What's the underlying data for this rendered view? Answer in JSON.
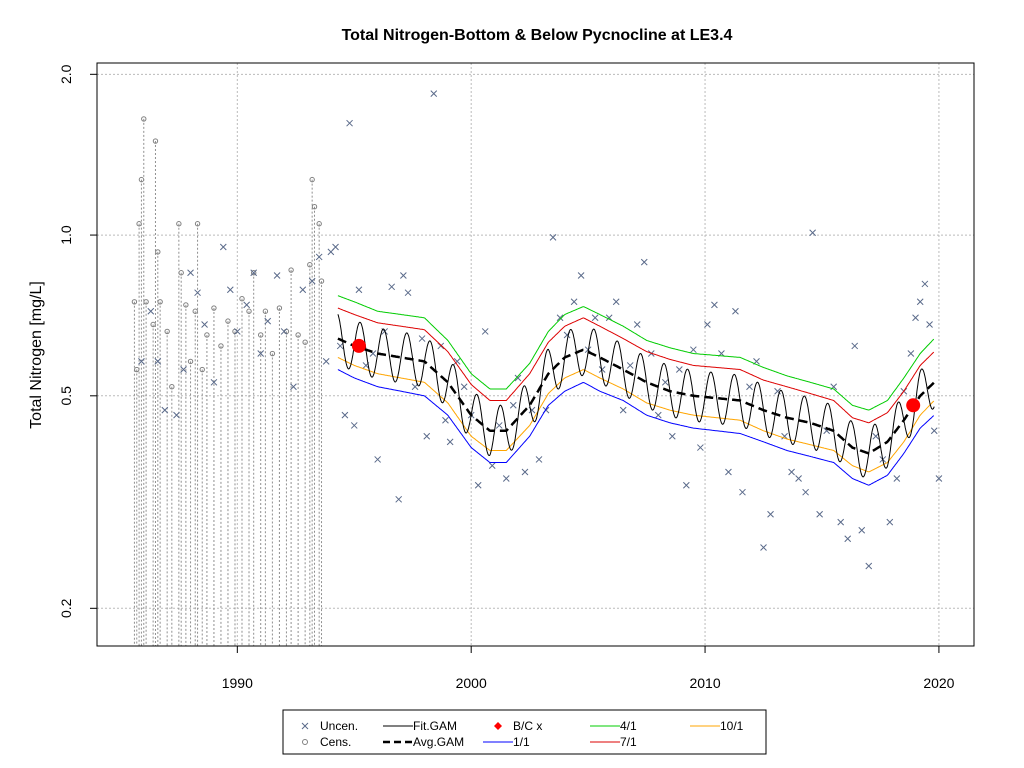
{
  "chart_data": {
    "type": "line",
    "title": "Total Nitrogen-Bottom & Below Pycnocline at LE3.4",
    "xlabel": "",
    "ylabel": "Total Nitrogen [mg/L]",
    "x_range": [
      1984.0,
      2021.5
    ],
    "ylim": [
      0.17,
      2.1
    ],
    "y_scale": "log",
    "x_ticks": [
      1990,
      2000,
      2010,
      2020
    ],
    "y_ticks": [
      0.2,
      0.5,
      1.0,
      2.0
    ],
    "y_tick_labels": [
      "0.2",
      "0.5",
      "1.0",
      "2.0"
    ],
    "grid": true,
    "colors": {
      "points": "#5a6a8a",
      "censored": "#808080",
      "fit_gam": "#000000",
      "avg_gam": "#000000",
      "bc": "#ff0000",
      "ratio_1_1": "#0000ff",
      "ratio_4_1": "#00cc00",
      "ratio_7_1": "#dd0000",
      "ratio_10_1": "#ffa500"
    },
    "series": [
      {
        "name": "Avg.GAM",
        "x": [
          1994.3,
          1995.0,
          1996.0,
          1997.0,
          1998.0,
          1999.0,
          2000.0,
          2000.8,
          2001.5,
          2002.5,
          2003.3,
          2004.0,
          2004.8,
          2005.5,
          2006.5,
          2007.5,
          2008.5,
          2009.5,
          2010.5,
          2011.5,
          2012.5,
          2013.5,
          2014.5,
          2015.5,
          2016.3,
          2017.0,
          2017.8,
          2018.5,
          2019.2,
          2019.8
        ],
        "y": [
          0.64,
          0.62,
          0.6,
          0.59,
          0.58,
          0.53,
          0.46,
          0.43,
          0.43,
          0.48,
          0.55,
          0.59,
          0.61,
          0.59,
          0.56,
          0.53,
          0.51,
          0.5,
          0.495,
          0.49,
          0.47,
          0.455,
          0.445,
          0.43,
          0.4,
          0.39,
          0.41,
          0.45,
          0.5,
          0.53
        ]
      },
      {
        "name": "Fit.GAM",
        "description_free": true,
        "x": [
          1994.3,
          1995.0,
          1996.0,
          1997.0,
          1998.0,
          1999.0,
          2000.0,
          2000.8,
          2001.5,
          2002.5,
          2003.3,
          2004.0,
          2004.8,
          2005.5,
          2006.5,
          2007.5,
          2008.5,
          2009.5,
          2010.5,
          2011.5,
          2012.5,
          2013.5,
          2014.5,
          2015.5,
          2016.3,
          2017.0,
          2017.8,
          2018.5,
          2019.2,
          2019.8
        ],
        "y": [
          0.64,
          0.62,
          0.6,
          0.59,
          0.58,
          0.53,
          0.46,
          0.43,
          0.43,
          0.48,
          0.55,
          0.59,
          0.61,
          0.59,
          0.56,
          0.53,
          0.51,
          0.5,
          0.495,
          0.49,
          0.47,
          0.455,
          0.445,
          0.43,
          0.4,
          0.39,
          0.41,
          0.45,
          0.5,
          0.53
        ],
        "seasonal_amplitude": 0.11
      },
      {
        "name": "1/1",
        "x": [
          1994.3,
          1995.0,
          1996.0,
          1997.0,
          1998.0,
          1999.0,
          2000.0,
          2000.8,
          2001.5,
          2002.5,
          2003.3,
          2004.0,
          2004.8,
          2005.5,
          2006.5,
          2007.5,
          2008.5,
          2009.5,
          2010.5,
          2011.5,
          2012.5,
          2013.5,
          2014.5,
          2015.5,
          2016.3,
          2017.0,
          2017.8,
          2018.5,
          2019.2,
          2019.8
        ],
        "y": [
          0.56,
          0.54,
          0.52,
          0.51,
          0.5,
          0.46,
          0.4,
          0.375,
          0.375,
          0.42,
          0.48,
          0.51,
          0.53,
          0.51,
          0.49,
          0.46,
          0.445,
          0.435,
          0.43,
          0.425,
          0.41,
          0.395,
          0.385,
          0.375,
          0.35,
          0.34,
          0.355,
          0.39,
          0.435,
          0.46
        ]
      },
      {
        "name": "10/1",
        "x": [
          1994.3,
          1995.0,
          1996.0,
          1997.0,
          1998.0,
          1999.0,
          2000.0,
          2000.8,
          2001.5,
          2002.5,
          2003.3,
          2004.0,
          2004.8,
          2005.5,
          2006.5,
          2007.5,
          2008.5,
          2009.5,
          2010.5,
          2011.5,
          2012.5,
          2013.5,
          2014.5,
          2015.5,
          2016.3,
          2017.0,
          2017.8,
          2018.5,
          2019.2,
          2019.8
        ],
        "y": [
          0.59,
          0.57,
          0.55,
          0.54,
          0.53,
          0.485,
          0.42,
          0.395,
          0.395,
          0.44,
          0.505,
          0.54,
          0.56,
          0.54,
          0.515,
          0.485,
          0.47,
          0.46,
          0.455,
          0.45,
          0.43,
          0.415,
          0.405,
          0.395,
          0.37,
          0.36,
          0.375,
          0.41,
          0.46,
          0.49
        ]
      },
      {
        "name": "7/1",
        "x": [
          1994.3,
          1995.0,
          1996.0,
          1997.0,
          1998.0,
          1999.0,
          2000.0,
          2000.8,
          2001.5,
          2002.5,
          2003.3,
          2004.0,
          2004.8,
          2005.5,
          2006.5,
          2007.5,
          2008.5,
          2009.5,
          2010.5,
          2011.5,
          2012.5,
          2013.5,
          2014.5,
          2015.5,
          2016.3,
          2017.0,
          2017.8,
          2018.5,
          2019.2,
          2019.8
        ],
        "y": [
          0.73,
          0.71,
          0.685,
          0.675,
          0.665,
          0.605,
          0.525,
          0.49,
          0.49,
          0.55,
          0.63,
          0.675,
          0.7,
          0.675,
          0.64,
          0.605,
          0.585,
          0.57,
          0.565,
          0.56,
          0.535,
          0.52,
          0.505,
          0.49,
          0.455,
          0.445,
          0.465,
          0.51,
          0.57,
          0.605
        ]
      },
      {
        "name": "4/1",
        "x": [
          1994.3,
          1995.0,
          1996.0,
          1997.0,
          1998.0,
          1999.0,
          2000.0,
          2000.8,
          2001.5,
          2002.5,
          2003.3,
          2004.0,
          2004.8,
          2005.5,
          2006.5,
          2007.5,
          2008.5,
          2009.5,
          2010.5,
          2011.5,
          2012.5,
          2013.5,
          2014.5,
          2015.5,
          2016.3,
          2017.0,
          2017.8,
          2018.5,
          2019.2,
          2019.8
        ],
        "y": [
          0.77,
          0.75,
          0.72,
          0.71,
          0.7,
          0.635,
          0.55,
          0.515,
          0.515,
          0.575,
          0.66,
          0.71,
          0.735,
          0.71,
          0.675,
          0.635,
          0.615,
          0.6,
          0.595,
          0.59,
          0.565,
          0.545,
          0.53,
          0.515,
          0.48,
          0.47,
          0.49,
          0.54,
          0.6,
          0.64
        ]
      },
      {
        "name": "B/C x",
        "x": [
          1995.2,
          2018.9
        ],
        "y": [
          0.62,
          0.48
        ]
      }
    ],
    "points_uncensored": [
      [
        1985.9,
        0.58
      ],
      [
        1986.3,
        0.72
      ],
      [
        1986.6,
        0.58
      ],
      [
        1986.9,
        0.47
      ],
      [
        1987.4,
        0.46
      ],
      [
        1987.7,
        0.56
      ],
      [
        1988.0,
        0.85
      ],
      [
        1988.3,
        0.78
      ],
      [
        1988.6,
        0.68
      ],
      [
        1989.0,
        0.53
      ],
      [
        1989.4,
        0.95
      ],
      [
        1989.7,
        0.79
      ],
      [
        1990.0,
        0.66
      ],
      [
        1990.4,
        0.74
      ],
      [
        1990.7,
        0.85
      ],
      [
        1991.0,
        0.6
      ],
      [
        1991.3,
        0.69
      ],
      [
        1991.7,
        0.84
      ],
      [
        1992.0,
        0.66
      ],
      [
        1992.4,
        0.52
      ],
      [
        1992.8,
        0.79
      ],
      [
        1993.2,
        0.82
      ],
      [
        1993.5,
        0.91
      ],
      [
        1993.8,
        0.58
      ],
      [
        1994.0,
        0.93
      ],
      [
        1994.2,
        0.95
      ],
      [
        1994.4,
        0.62
      ],
      [
        1994.6,
        0.46
      ],
      [
        1994.8,
        1.62
      ],
      [
        1995.0,
        0.44
      ],
      [
        1995.2,
        0.79
      ],
      [
        1995.5,
        0.57
      ],
      [
        1995.8,
        0.6
      ],
      [
        1996.0,
        0.38
      ],
      [
        1996.3,
        0.66
      ],
      [
        1996.6,
        0.8
      ],
      [
        1996.9,
        0.32
      ],
      [
        1997.1,
        0.84
      ],
      [
        1997.3,
        0.78
      ],
      [
        1997.6,
        0.52
      ],
      [
        1997.9,
        0.64
      ],
      [
        1998.1,
        0.42
      ],
      [
        1998.4,
        1.84
      ],
      [
        1998.7,
        0.62
      ],
      [
        1998.9,
        0.45
      ],
      [
        1999.1,
        0.41
      ],
      [
        1999.4,
        0.58
      ],
      [
        1999.7,
        0.52
      ],
      [
        2000.0,
        0.46
      ],
      [
        2000.3,
        0.34
      ],
      [
        2000.6,
        0.66
      ],
      [
        2000.9,
        0.37
      ],
      [
        2001.2,
        0.44
      ],
      [
        2001.5,
        0.35
      ],
      [
        2001.8,
        0.48
      ],
      [
        2002.0,
        0.54
      ],
      [
        2002.3,
        0.36
      ],
      [
        2002.6,
        0.47
      ],
      [
        2002.9,
        0.38
      ],
      [
        2003.2,
        0.47
      ],
      [
        2003.5,
        0.99
      ],
      [
        2003.8,
        0.7
      ],
      [
        2004.1,
        0.65
      ],
      [
        2004.4,
        0.75
      ],
      [
        2004.7,
        0.84
      ],
      [
        2005.0,
        0.61
      ],
      [
        2005.3,
        0.7
      ],
      [
        2005.6,
        0.56
      ],
      [
        2005.9,
        0.7
      ],
      [
        2006.2,
        0.75
      ],
      [
        2006.5,
        0.47
      ],
      [
        2006.8,
        0.57
      ],
      [
        2007.1,
        0.68
      ],
      [
        2007.4,
        0.89
      ],
      [
        2007.7,
        0.6
      ],
      [
        2008.0,
        0.46
      ],
      [
        2008.3,
        0.53
      ],
      [
        2008.6,
        0.42
      ],
      [
        2008.9,
        0.56
      ],
      [
        2009.2,
        0.34
      ],
      [
        2009.5,
        0.61
      ],
      [
        2009.8,
        0.4
      ],
      [
        2010.1,
        0.68
      ],
      [
        2010.4,
        0.74
      ],
      [
        2010.7,
        0.6
      ],
      [
        2011.0,
        0.36
      ],
      [
        2011.3,
        0.72
      ],
      [
        2011.6,
        0.33
      ],
      [
        2011.9,
        0.52
      ],
      [
        2012.2,
        0.58
      ],
      [
        2012.5,
        0.26
      ],
      [
        2012.8,
        0.3
      ],
      [
        2013.1,
        0.51
      ],
      [
        2013.4,
        0.42
      ],
      [
        2013.7,
        0.36
      ],
      [
        2014.0,
        0.35
      ],
      [
        2014.3,
        0.33
      ],
      [
        2014.6,
        1.01
      ],
      [
        2014.9,
        0.3
      ],
      [
        2015.2,
        0.43
      ],
      [
        2015.5,
        0.52
      ],
      [
        2015.8,
        0.29
      ],
      [
        2016.1,
        0.27
      ],
      [
        2016.4,
        0.62
      ],
      [
        2016.7,
        0.28
      ],
      [
        2017.0,
        0.24
      ],
      [
        2017.3,
        0.42
      ],
      [
        2017.6,
        0.38
      ],
      [
        2017.9,
        0.29
      ],
      [
        2018.2,
        0.35
      ],
      [
        2018.5,
        0.51
      ],
      [
        2018.8,
        0.6
      ],
      [
        2019.0,
        0.7
      ],
      [
        2019.2,
        0.75
      ],
      [
        2019.4,
        0.81
      ],
      [
        2019.6,
        0.68
      ],
      [
        2019.8,
        0.43
      ],
      [
        2020.0,
        0.35
      ]
    ],
    "points_censored": [
      [
        1985.6,
        0.75
      ],
      [
        1985.7,
        0.56
      ],
      [
        1985.8,
        1.05
      ],
      [
        1985.9,
        1.27
      ],
      [
        1986.0,
        1.65
      ],
      [
        1986.1,
        0.75
      ],
      [
        1986.4,
        0.68
      ],
      [
        1986.5,
        1.5
      ],
      [
        1986.6,
        0.93
      ],
      [
        1986.7,
        0.75
      ],
      [
        1987.0,
        0.66
      ],
      [
        1987.2,
        0.52
      ],
      [
        1987.5,
        1.05
      ],
      [
        1987.6,
        0.85
      ],
      [
        1987.8,
        0.74
      ],
      [
        1988.0,
        0.58
      ],
      [
        1988.2,
        0.72
      ],
      [
        1988.3,
        1.05
      ],
      [
        1988.5,
        0.56
      ],
      [
        1988.7,
        0.65
      ],
      [
        1989.0,
        0.73
      ],
      [
        1989.3,
        0.62
      ],
      [
        1989.6,
        0.69
      ],
      [
        1989.9,
        0.66
      ],
      [
        1990.2,
        0.76
      ],
      [
        1990.5,
        0.72
      ],
      [
        1990.7,
        0.85
      ],
      [
        1991.0,
        0.65
      ],
      [
        1991.2,
        0.72
      ],
      [
        1991.5,
        0.6
      ],
      [
        1991.8,
        0.73
      ],
      [
        1992.1,
        0.66
      ],
      [
        1992.3,
        0.86
      ],
      [
        1992.6,
        0.65
      ],
      [
        1992.9,
        0.63
      ],
      [
        1993.1,
        0.88
      ],
      [
        1993.2,
        1.27
      ],
      [
        1993.3,
        1.13
      ],
      [
        1993.5,
        1.05
      ],
      [
        1993.6,
        0.82
      ]
    ],
    "legend": {
      "items": [
        {
          "label": "Uncen.",
          "kind": "x-marker",
          "color": "#5a6a8a"
        },
        {
          "label": "Cens.",
          "kind": "circle-marker",
          "color": "#808080"
        },
        {
          "label": "Fit.GAM",
          "kind": "line",
          "color": "#000000"
        },
        {
          "label": "Avg.GAM",
          "kind": "dashed-line",
          "color": "#000000"
        },
        {
          "label": "B/C x",
          "kind": "diamond",
          "color": "#ff0000"
        },
        {
          "label": "1/1",
          "kind": "line",
          "color": "#0000ff"
        },
        {
          "label": "4/1",
          "kind": "line",
          "color": "#00cc00"
        },
        {
          "label": "7/1",
          "kind": "line",
          "color": "#dd0000"
        },
        {
          "label": "10/1",
          "kind": "line",
          "color": "#ffa500"
        }
      ],
      "placement": "bottom"
    }
  }
}
